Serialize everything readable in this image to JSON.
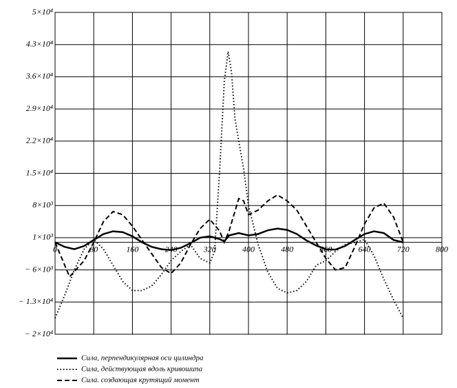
{
  "chart_data": {
    "type": "line",
    "xlim": [
      0,
      800
    ],
    "xticks": [
      0,
      80,
      160,
      240,
      320,
      400,
      480,
      560,
      640,
      720,
      800
    ],
    "ylim": [
      -20000,
      50000
    ],
    "yticks": [
      {
        "value": -20000,
        "label": "− 2×10⁴"
      },
      {
        "value": -13000,
        "label": "− 1.3×10⁴"
      },
      {
        "value": -6000,
        "label": "− 6×10³"
      },
      {
        "value": 1000,
        "label": "1×10³"
      },
      {
        "value": 8000,
        "label": "8×10³"
      },
      {
        "value": 15000,
        "label": "1.5×10⁴"
      },
      {
        "value": 22000,
        "label": "2.2×10⁴"
      },
      {
        "value": 29000,
        "label": "2.9×10⁴"
      },
      {
        "value": 36000,
        "label": "3.6×10⁴"
      },
      {
        "value": 43000,
        "label": "4.3×10⁴"
      },
      {
        "value": 50000,
        "label": "5×10⁴"
      }
    ],
    "grid": true,
    "series": [
      {
        "name": "Сила, перпендикулярная оси цилиндра",
        "color": "#000000",
        "style": "solid",
        "x": [
          0,
          20,
          40,
          60,
          80,
          100,
          120,
          140,
          160,
          180,
          200,
          220,
          240,
          260,
          280,
          300,
          320,
          340,
          350,
          360,
          380,
          400,
          420,
          440,
          460,
          480,
          500,
          520,
          540,
          560,
          580,
          600,
          620,
          640,
          660,
          680,
          700,
          720
        ],
        "values": [
          0,
          -1000,
          -1500,
          -800,
          500,
          1800,
          2400,
          2200,
          1300,
          0,
          -1000,
          -1500,
          -1700,
          -1200,
          -200,
          1000,
          1300,
          700,
          200,
          1500,
          2000,
          1500,
          1800,
          2600,
          3000,
          2700,
          1800,
          400,
          -700,
          -1500,
          -1600,
          -800,
          500,
          1800,
          2400,
          2000,
          500,
          0
        ]
      },
      {
        "name": "Сила, действующая вдоль кривошипа",
        "color": "#000000",
        "style": "dotted",
        "x": [
          0,
          20,
          40,
          60,
          80,
          100,
          120,
          140,
          160,
          180,
          200,
          220,
          240,
          260,
          280,
          300,
          320,
          330,
          340,
          350,
          358,
          365,
          372,
          380,
          390,
          400,
          420,
          440,
          460,
          480,
          500,
          520,
          540,
          560,
          580,
          600,
          620,
          640,
          660,
          680,
          700,
          720
        ],
        "values": [
          -16500,
          -11500,
          -6000,
          -1500,
          600,
          -1500,
          -5000,
          -8500,
          -10500,
          -10500,
          -9500,
          -7000,
          -4000,
          -2000,
          -500,
          -3500,
          -4500,
          -2000,
          15000,
          35000,
          41500,
          37000,
          27000,
          22000,
          16000,
          8000,
          -500,
          -6500,
          -10000,
          -11000,
          -10500,
          -8500,
          -5000,
          -4000,
          -2000,
          -500,
          0,
          600,
          -3000,
          -8000,
          -12500,
          -16500
        ]
      },
      {
        "name": "Сила. создающая крутящий момент",
        "color": "#000000",
        "style": "dashed",
        "x": [
          0,
          30,
          60,
          80,
          100,
          120,
          140,
          160,
          180,
          200,
          220,
          240,
          260,
          280,
          300,
          320,
          340,
          350,
          360,
          380,
          390,
          400,
          410,
          420,
          440,
          460,
          480,
          500,
          520,
          540,
          560,
          580,
          600,
          620,
          640,
          660,
          680,
          700,
          720
        ],
        "values": [
          0,
          -7500,
          -4000,
          0,
          4500,
          6700,
          6000,
          3500,
          500,
          -2500,
          -5500,
          -6800,
          -4500,
          -500,
          3000,
          5000,
          2500,
          0,
          2500,
          9500,
          9000,
          6000,
          6500,
          7000,
          9000,
          10300,
          9000,
          7000,
          3500,
          0,
          -3500,
          -6000,
          -5500,
          -1000,
          4000,
          7500,
          8500,
          5500,
          0
        ]
      }
    ]
  }
}
